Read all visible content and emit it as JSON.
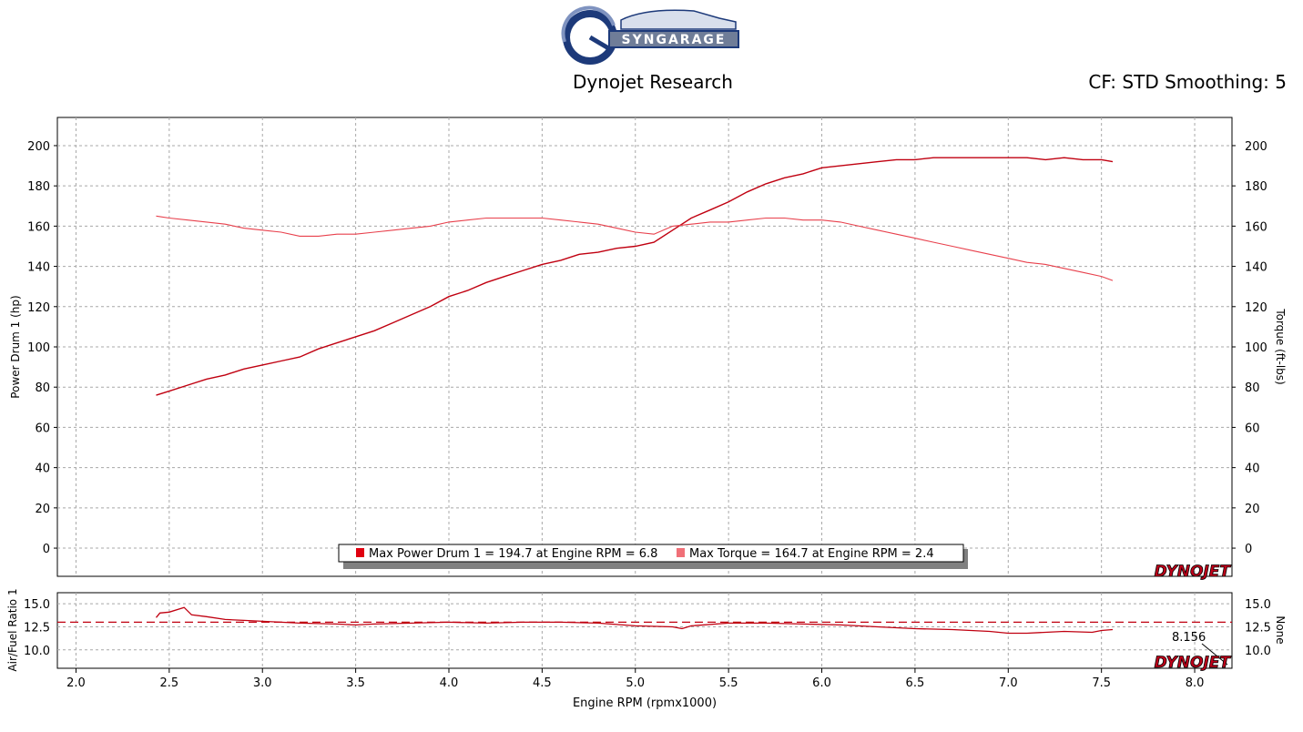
{
  "header": {
    "brand": "SYNGARAGE",
    "title": "Dynojet Research",
    "settings": "CF: STD Smoothing: 5"
  },
  "watermark": "DYNOJET",
  "colors": {
    "power": "#c00010",
    "torque": "#e8404c",
    "afr": "#c00010",
    "grid": "#a8a8a8"
  },
  "chart_data": [
    {
      "type": "line",
      "xlabel": "Engine RPM (rpmx1000)",
      "ylabel": "Power Drum 1 (hp)",
      "y2label": "Torque (ft-lbs)",
      "xlim": [
        1.9,
        8.2
      ],
      "ylim": [
        -14,
        214
      ],
      "xticks": [
        "2.0",
        "2.5",
        "3.0",
        "3.5",
        "4.0",
        "4.5",
        "5.0",
        "5.5",
        "6.0",
        "6.5",
        "7.0",
        "7.5",
        "8.0"
      ],
      "yticks": [
        "0",
        "20",
        "40",
        "60",
        "80",
        "100",
        "120",
        "140",
        "160",
        "180",
        "200"
      ],
      "legend": [
        "Max Power Drum 1 = 194.7 at Engine RPM = 6.8",
        "Max Torque = 164.7 at Engine RPM = 2.4"
      ],
      "series": [
        {
          "name": "Power Drum 1",
          "axis": "left",
          "x": [
            2.43,
            2.5,
            2.6,
            2.7,
            2.8,
            2.9,
            3.0,
            3.1,
            3.2,
            3.3,
            3.4,
            3.5,
            3.6,
            3.7,
            3.8,
            3.9,
            4.0,
            4.1,
            4.2,
            4.3,
            4.4,
            4.5,
            4.6,
            4.7,
            4.8,
            4.9,
            5.0,
            5.1,
            5.2,
            5.3,
            5.4,
            5.5,
            5.6,
            5.7,
            5.8,
            5.9,
            6.0,
            6.1,
            6.2,
            6.3,
            6.4,
            6.5,
            6.6,
            6.7,
            6.8,
            6.9,
            7.0,
            7.1,
            7.2,
            7.3,
            7.4,
            7.5,
            7.56
          ],
          "y": [
            76,
            78,
            81,
            84,
            86,
            89,
            91,
            93,
            95,
            99,
            102,
            105,
            108,
            112,
            116,
            120,
            125,
            128,
            132,
            135,
            138,
            141,
            143,
            146,
            147,
            149,
            150,
            152,
            158,
            164,
            168,
            172,
            177,
            181,
            184,
            186,
            189,
            190,
            191,
            192,
            193,
            193,
            194,
            194,
            194,
            194,
            194,
            194,
            193,
            194,
            193,
            193,
            192
          ]
        },
        {
          "name": "Torque",
          "axis": "right",
          "x": [
            2.43,
            2.5,
            2.6,
            2.7,
            2.8,
            2.9,
            3.0,
            3.1,
            3.2,
            3.3,
            3.4,
            3.5,
            3.6,
            3.7,
            3.8,
            3.9,
            4.0,
            4.1,
            4.2,
            4.3,
            4.4,
            4.5,
            4.6,
            4.7,
            4.8,
            4.9,
            5.0,
            5.1,
            5.2,
            5.3,
            5.4,
            5.5,
            5.6,
            5.7,
            5.8,
            5.9,
            6.0,
            6.1,
            6.2,
            6.3,
            6.4,
            6.5,
            6.6,
            6.7,
            6.8,
            6.9,
            7.0,
            7.1,
            7.2,
            7.3,
            7.4,
            7.5,
            7.56
          ],
          "y": [
            165,
            164,
            163,
            162,
            161,
            159,
            158,
            157,
            155,
            155,
            156,
            156,
            157,
            158,
            159,
            160,
            162,
            163,
            164,
            164,
            164,
            164,
            163,
            162,
            161,
            159,
            157,
            156,
            160,
            161,
            162,
            162,
            163,
            164,
            164,
            163,
            163,
            162,
            160,
            158,
            156,
            154,
            152,
            150,
            148,
            146,
            144,
            142,
            141,
            139,
            137,
            135,
            133
          ]
        }
      ]
    },
    {
      "type": "line",
      "ylabel": "Air/Fuel Ratio 1",
      "y2label": "None",
      "xlim": [
        1.9,
        8.2
      ],
      "ylim": [
        8,
        16.2
      ],
      "yticks": [
        "10.0",
        "12.5",
        "15.0"
      ],
      "reference_value": 13.0,
      "annotation": "8.156",
      "series": [
        {
          "name": "Air/Fuel Ratio 1",
          "x": [
            2.43,
            2.45,
            2.5,
            2.58,
            2.62,
            2.7,
            2.8,
            2.9,
            3.0,
            3.2,
            3.4,
            3.5,
            3.6,
            3.8,
            4.0,
            4.2,
            4.4,
            4.6,
            4.8,
            5.0,
            5.2,
            5.25,
            5.3,
            5.5,
            5.7,
            5.9,
            6.1,
            6.3,
            6.5,
            6.7,
            6.9,
            7.0,
            7.1,
            7.3,
            7.45,
            7.5,
            7.56
          ],
          "y": [
            13.5,
            14.0,
            14.1,
            14.6,
            13.8,
            13.6,
            13.3,
            13.2,
            13.1,
            12.9,
            12.8,
            12.7,
            12.8,
            12.9,
            13.0,
            12.9,
            13.0,
            13.0,
            12.9,
            12.6,
            12.5,
            12.3,
            12.6,
            12.9,
            12.9,
            12.8,
            12.7,
            12.5,
            12.3,
            12.2,
            12.0,
            11.8,
            11.8,
            12.0,
            11.9,
            12.1,
            12.2
          ]
        }
      ]
    }
  ]
}
